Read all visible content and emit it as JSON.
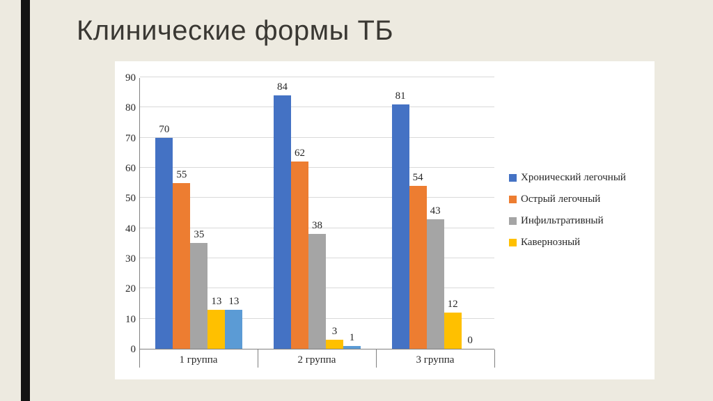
{
  "slide": {
    "title": "Клинические формы ТБ",
    "background_color": "#edeae0",
    "accent_bar_color": "#131313"
  },
  "chart_data": {
    "type": "bar",
    "title": "Клинические формы ТБ",
    "categories": [
      "1 группа",
      "2 группа",
      "3 группа"
    ],
    "series": [
      {
        "name": "Хронический легочный",
        "color": "#4472C4",
        "values": [
          70,
          84,
          81
        ],
        "in_legend": true
      },
      {
        "name": "Острый легочный",
        "color": "#ED7D31",
        "values": [
          55,
          62,
          54
        ],
        "in_legend": true
      },
      {
        "name": "Инфильтративный",
        "color": "#A5A5A5",
        "values": [
          35,
          38,
          43
        ],
        "in_legend": true
      },
      {
        "name": "Кавернозный",
        "color": "#FFC000",
        "values": [
          13,
          3,
          12
        ],
        "in_legend": true
      },
      {
        "name": "",
        "color": "#5B9BD5",
        "values": [
          13,
          1,
          0
        ],
        "in_legend": false
      }
    ],
    "ylim": [
      0,
      90
    ],
    "ytick_step": 10,
    "grid": true,
    "data_labels": true,
    "legend_position": "right",
    "xlabel": "",
    "ylabel": ""
  }
}
